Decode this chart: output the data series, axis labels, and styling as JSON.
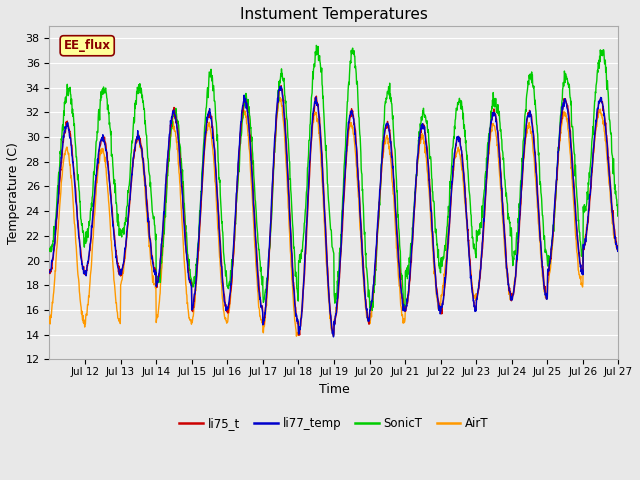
{
  "title": "Instument Temperatures",
  "xlabel": "Time",
  "ylabel": "Temperature (C)",
  "ylim": [
    12,
    39
  ],
  "yticks": [
    12,
    14,
    16,
    18,
    20,
    22,
    24,
    26,
    28,
    30,
    32,
    34,
    36,
    38
  ],
  "colors": {
    "li75_t": "#cc0000",
    "li77_temp": "#0000cc",
    "SonicT": "#00cc00",
    "AirT": "#ff9900"
  },
  "annotation_text": "EE_flux",
  "axes_bg": "#e8e8e8",
  "grid_color": "#ffffff",
  "fig_bg": "#e8e8e8",
  "daily_peaks_li": [
    31,
    30,
    30,
    32,
    32,
    33,
    34,
    33,
    32,
    31,
    31,
    30,
    32,
    32,
    33,
    33
  ],
  "daily_mins_li": [
    19,
    19,
    19,
    18,
    16,
    16,
    15,
    14,
    15,
    16,
    16,
    16,
    17,
    17,
    19,
    21
  ],
  "daily_peaks_sonic": [
    34,
    34,
    34,
    32,
    35,
    33,
    35,
    37,
    37,
    34,
    32,
    33,
    33,
    35,
    35,
    37
  ],
  "daily_mins_sonic": [
    21,
    22,
    22,
    18,
    18,
    18,
    17,
    20,
    17,
    16,
    19,
    20,
    22,
    20,
    20,
    24
  ],
  "daily_peaks_air": [
    29,
    29,
    30,
    31,
    31,
    32,
    33,
    32,
    31,
    30,
    30,
    29,
    31,
    31,
    32,
    32
  ],
  "daily_mins_air": [
    15,
    15,
    18,
    15,
    15,
    15,
    14,
    14,
    15,
    15,
    16,
    17,
    17,
    17,
    18,
    21
  ],
  "xlim_left": 11.0,
  "xlim_right": 27.0,
  "xtick_positions": [
    12,
    13,
    14,
    15,
    16,
    17,
    18,
    19,
    20,
    21,
    22,
    23,
    24,
    25,
    26,
    27
  ],
  "xtick_labels": [
    "Jul 12",
    "Jul 13",
    "Jul 14",
    "Jul 15",
    "Jul 16",
    "Jul 17",
    "Jul 18",
    "Jul 19",
    "Jul 20",
    "Jul 21",
    "Jul 22",
    "Jul 23",
    "Jul 24",
    "Jul 25",
    "Jul 26",
    "Jul 27"
  ]
}
